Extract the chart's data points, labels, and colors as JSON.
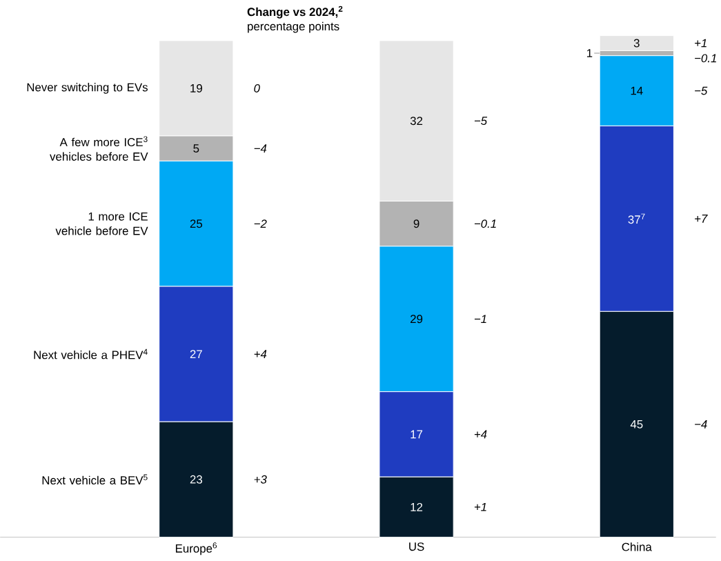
{
  "chart_data": {
    "type": "bar",
    "stacked": true,
    "categories": [
      "Europe$^{6}$",
      "US",
      "China"
    ],
    "series": [
      {
        "name": "Next vehicle a BEV$^{5}$",
        "color": "#051c2c",
        "values": [
          23,
          12,
          45
        ],
        "value_labels": [
          "23",
          "12",
          "45"
        ]
      },
      {
        "name": "Next vehicle a PHEV$^{4}$",
        "color": "#1f3cc0",
        "values": [
          27,
          17,
          37
        ],
        "value_labels": [
          "27",
          "17",
          "37$^{7}$"
        ]
      },
      {
        "name": "1 more ICE vehicle before EV",
        "color": "#00a9f4",
        "values": [
          25,
          29,
          14
        ],
        "value_labels": [
          "25",
          "29",
          "14"
        ]
      },
      {
        "name": "A few more ICE$^{3}$ vehicles before EV",
        "color": "#b3b3b3",
        "values": [
          5,
          9,
          1
        ],
        "value_labels": [
          "5",
          "9",
          "1"
        ]
      },
      {
        "name": "Never switching to EVs",
        "color": "#e6e6e6",
        "values": [
          19,
          32,
          3
        ],
        "value_labels": [
          "19",
          "32",
          "3"
        ]
      }
    ],
    "annotations": [
      "Change vs 2024,$^{2}$",
      "percentage points",
      "+3",
      "+4",
      "−2",
      "−4",
      "0",
      "+1",
      "+4",
      "−1",
      "−0.1",
      "−5",
      "−4",
      "+7",
      "−5",
      "−0.1",
      "+1"
    ]
  }
}
